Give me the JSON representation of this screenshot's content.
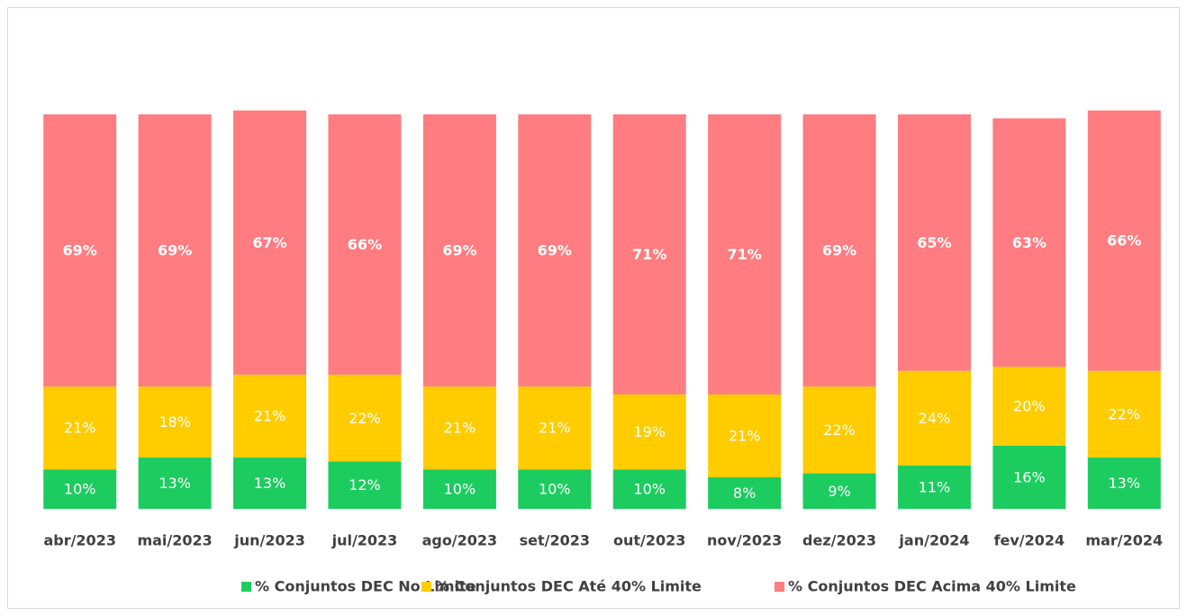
{
  "chart_data": {
    "type": "stacked_bar",
    "categories": [
      "abr/2023",
      "mai/2023",
      "jun/2023",
      "jul/2023",
      "ago/2023",
      "set/2023",
      "out/2023",
      "nov/2023",
      "dez/2023",
      "jan/2024",
      "fev/2024",
      "mar/2024"
    ],
    "ylim": [
      0,
      100
    ],
    "series": [
      {
        "name": "% Conjuntos DEC No Limite",
        "color": "#1ccc5f",
        "bold": false,
        "values": [
          10,
          13,
          13,
          12,
          10,
          10,
          10,
          8,
          9,
          11,
          16,
          13
        ],
        "value_labels": [
          "10%",
          "13%",
          "13%",
          "12%",
          "10%",
          "10%",
          "10%",
          "8%",
          "9%",
          "11%",
          "16%",
          "13%"
        ]
      },
      {
        "name": "% Conjuntos DEC Até 40% Limite",
        "color": "#ffcc00",
        "bold": false,
        "values": [
          21,
          18,
          21,
          22,
          21,
          21,
          19,
          21,
          22,
          24,
          20,
          22
        ],
        "value_labels": [
          "21%",
          "18%",
          "21%",
          "22%",
          "21%",
          "21%",
          "19%",
          "21%",
          "22%",
          "24%",
          "20%",
          "22%"
        ]
      },
      {
        "name": "% Conjuntos DEC Acima 40% Limite",
        "color": "#ff7c80",
        "bold": true,
        "values": [
          69,
          69,
          67,
          66,
          69,
          69,
          71,
          71,
          69,
          65,
          63,
          66
        ],
        "value_labels": [
          "69%",
          "69%",
          "67%",
          "66%",
          "69%",
          "69%",
          "71%",
          "71%",
          "69%",
          "65%",
          "63%",
          "66%"
        ]
      }
    ]
  }
}
